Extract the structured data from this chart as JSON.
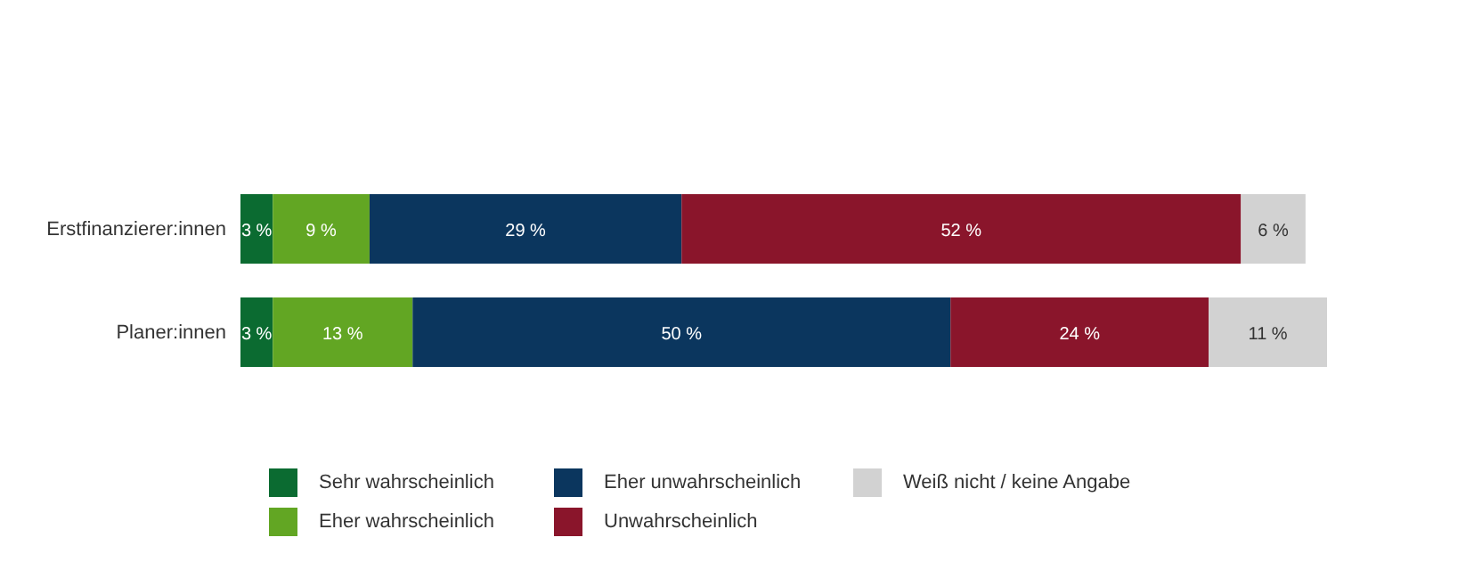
{
  "chart_data": {
    "type": "bar",
    "orientation": "horizontal",
    "stacked": true,
    "legend": "bottom",
    "categories": [
      "Erstfinanzierer:innen",
      "Planer:innen"
    ],
    "series": [
      {
        "name": "Sehr wahrscheinlich",
        "color": "#0b6b31",
        "values": [
          3,
          3
        ],
        "value_labels": [
          "3 %",
          "3 %"
        ]
      },
      {
        "name": "Eher wahrscheinlich",
        "color": "#62a623",
        "values": [
          9,
          13
        ],
        "value_labels": [
          "9 %",
          "13 %"
        ]
      },
      {
        "name": "Eher unwahrscheinlich",
        "color": "#0b365e",
        "values": [
          29,
          50
        ],
        "value_labels": [
          "29 %",
          "50 %"
        ]
      },
      {
        "name": "Unwahrscheinlich",
        "color": "#8a152b",
        "values": [
          52,
          24
        ],
        "value_labels": [
          "52 %",
          "24 %"
        ]
      },
      {
        "name": "Weiß nicht / keine Angabe",
        "color": "#d2d2d2",
        "values": [
          6,
          11
        ],
        "value_labels": [
          "6 %",
          "11 %"
        ]
      }
    ]
  }
}
